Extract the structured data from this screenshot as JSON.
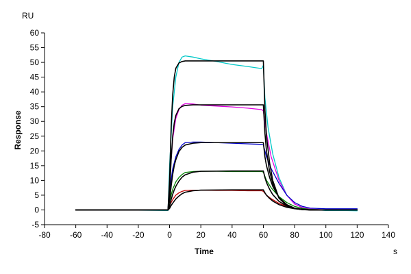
{
  "chart_data": {
    "type": "line",
    "title": "",
    "xlabel": "Time",
    "ylabel": "Response",
    "x_unit": "s",
    "y_unit": "RU",
    "xlim": [
      -80,
      140
    ],
    "ylim": [
      -5,
      60
    ],
    "xticks": [
      -80,
      -60,
      -40,
      -20,
      0,
      20,
      40,
      60,
      80,
      100,
      120,
      140
    ],
    "yticks": [
      -5,
      0,
      5,
      10,
      15,
      20,
      25,
      30,
      35,
      40,
      45,
      50,
      55,
      60
    ],
    "grid": false,
    "legend": "none",
    "series": [
      {
        "color": "#00c8c8",
        "kind": "measured",
        "points": [
          [
            -60,
            0
          ],
          [
            -20,
            -0.1
          ],
          [
            -1,
            -0.2
          ],
          [
            0,
            15
          ],
          [
            2,
            35
          ],
          [
            4,
            45
          ],
          [
            6,
            50
          ],
          [
            8,
            51.8
          ],
          [
            10,
            52.2
          ],
          [
            15,
            51.8
          ],
          [
            20,
            51.2
          ],
          [
            30,
            50.3
          ],
          [
            40,
            49.3
          ],
          [
            50,
            48.6
          ],
          [
            59,
            47.9
          ],
          [
            60,
            49
          ],
          [
            61,
            38
          ],
          [
            63,
            28
          ],
          [
            66,
            19
          ],
          [
            70,
            11
          ],
          [
            75,
            5
          ],
          [
            80,
            2
          ],
          [
            85,
            0.8
          ],
          [
            90,
            0.2
          ],
          [
            100,
            -0.2
          ],
          [
            110,
            -0.2
          ],
          [
            120,
            -0.3
          ]
        ]
      },
      {
        "color": "#e000e0",
        "kind": "measured",
        "points": [
          [
            -60,
            0
          ],
          [
            -1,
            -0.1
          ],
          [
            0,
            10
          ],
          [
            2,
            24
          ],
          [
            4,
            31
          ],
          [
            6,
            34
          ],
          [
            8,
            35.5
          ],
          [
            10,
            36
          ],
          [
            15,
            35.9
          ],
          [
            20,
            35.5
          ],
          [
            30,
            35.2
          ],
          [
            40,
            34.9
          ],
          [
            50,
            34.5
          ],
          [
            59,
            34
          ],
          [
            60,
            33.5
          ],
          [
            62,
            26
          ],
          [
            65,
            18
          ],
          [
            70,
            10
          ],
          [
            75,
            5
          ],
          [
            80,
            2
          ],
          [
            85,
            0.8
          ],
          [
            90,
            0.3
          ],
          [
            100,
            0
          ],
          [
            110,
            0
          ],
          [
            120,
            0
          ]
        ]
      },
      {
        "color": "#0000c8",
        "kind": "measured",
        "points": [
          [
            -60,
            0
          ],
          [
            -1,
            0
          ],
          [
            0,
            6
          ],
          [
            2,
            14
          ],
          [
            4,
            18
          ],
          [
            6,
            20.5
          ],
          [
            8,
            22
          ],
          [
            10,
            22.8
          ],
          [
            15,
            23
          ],
          [
            20,
            23
          ],
          [
            30,
            22.8
          ],
          [
            40,
            22.6
          ],
          [
            50,
            22.4
          ],
          [
            59,
            22.2
          ],
          [
            60,
            22
          ],
          [
            62,
            18
          ],
          [
            65,
            14
          ],
          [
            70,
            9
          ],
          [
            75,
            5
          ],
          [
            80,
            2.5
          ],
          [
            85,
            1.2
          ],
          [
            90,
            0.6
          ],
          [
            100,
            0.4
          ],
          [
            110,
            0.4
          ],
          [
            120,
            0.4
          ]
        ]
      },
      {
        "color": "#008000",
        "kind": "measured",
        "points": [
          [
            -60,
            0
          ],
          [
            -1,
            0
          ],
          [
            0,
            3
          ],
          [
            2,
            7
          ],
          [
            4,
            9.5
          ],
          [
            6,
            11
          ],
          [
            8,
            12
          ],
          [
            10,
            12.7
          ],
          [
            15,
            13
          ],
          [
            20,
            13.1
          ],
          [
            30,
            13.1
          ],
          [
            40,
            13
          ],
          [
            50,
            13
          ],
          [
            59,
            13
          ],
          [
            60,
            12.8
          ],
          [
            62,
            10
          ],
          [
            65,
            7.5
          ],
          [
            70,
            4.5
          ],
          [
            75,
            2.5
          ],
          [
            80,
            1.2
          ],
          [
            85,
            0.5
          ],
          [
            90,
            0.2
          ],
          [
            100,
            0
          ],
          [
            110,
            0
          ],
          [
            120,
            0
          ]
        ]
      },
      {
        "color": "#c00000",
        "kind": "measured",
        "points": [
          [
            -60,
            0
          ],
          [
            -1,
            0
          ],
          [
            0,
            1.5
          ],
          [
            2,
            3.5
          ],
          [
            4,
            5
          ],
          [
            6,
            5.8
          ],
          [
            8,
            6.3
          ],
          [
            10,
            6.6
          ],
          [
            15,
            6.7
          ],
          [
            20,
            6.7
          ],
          [
            30,
            6.6
          ],
          [
            40,
            6.6
          ],
          [
            50,
            6.5
          ],
          [
            59,
            6.5
          ],
          [
            60,
            6.3
          ],
          [
            62,
            5
          ],
          [
            65,
            3.8
          ],
          [
            70,
            2.2
          ],
          [
            75,
            1.2
          ],
          [
            80,
            0.5
          ],
          [
            85,
            0.2
          ],
          [
            90,
            0
          ],
          [
            100,
            0
          ],
          [
            110,
            0
          ],
          [
            120,
            0
          ]
        ]
      },
      {
        "color": "#000000",
        "kind": "fit",
        "points": [
          [
            -60,
            0
          ],
          [
            -1,
            0
          ],
          [
            0,
            10
          ],
          [
            1,
            28
          ],
          [
            2,
            39
          ],
          [
            3,
            45
          ],
          [
            4,
            48
          ],
          [
            6,
            49.8
          ],
          [
            8,
            50.3
          ],
          [
            10,
            50.5
          ],
          [
            20,
            50.5
          ],
          [
            40,
            50.5
          ],
          [
            59.5,
            50.5
          ],
          [
            60,
            50.5
          ],
          [
            61,
            34
          ],
          [
            62,
            25
          ],
          [
            64,
            16
          ],
          [
            66,
            10
          ],
          [
            70,
            4
          ],
          [
            75,
            1.4
          ],
          [
            80,
            0.5
          ],
          [
            85,
            0.1
          ],
          [
            90,
            0
          ],
          [
            120,
            0
          ]
        ]
      },
      {
        "color": "#000000",
        "kind": "fit",
        "points": [
          [
            -60,
            0
          ],
          [
            -1,
            0
          ],
          [
            0,
            6
          ],
          [
            1,
            17
          ],
          [
            2,
            25
          ],
          [
            3,
            29.5
          ],
          [
            4,
            32
          ],
          [
            6,
            34.3
          ],
          [
            8,
            35.1
          ],
          [
            10,
            35.4
          ],
          [
            15,
            35.6
          ],
          [
            20,
            35.6
          ],
          [
            40,
            35.6
          ],
          [
            59.5,
            35.6
          ],
          [
            60,
            35.6
          ],
          [
            61,
            26
          ],
          [
            62,
            20
          ],
          [
            64,
            13
          ],
          [
            66,
            9
          ],
          [
            70,
            4
          ],
          [
            75,
            1.5
          ],
          [
            80,
            0.5
          ],
          [
            85,
            0.1
          ],
          [
            90,
            0
          ],
          [
            120,
            0
          ]
        ]
      },
      {
        "color": "#000000",
        "kind": "fit",
        "points": [
          [
            -60,
            0
          ],
          [
            -1,
            0
          ],
          [
            0,
            3
          ],
          [
            1,
            8
          ],
          [
            2,
            12
          ],
          [
            3,
            15
          ],
          [
            4,
            17
          ],
          [
            6,
            19.8
          ],
          [
            8,
            21.2
          ],
          [
            10,
            22
          ],
          [
            15,
            22.6
          ],
          [
            20,
            22.8
          ],
          [
            40,
            22.8
          ],
          [
            59.5,
            22.8
          ],
          [
            60,
            22.8
          ],
          [
            61,
            18
          ],
          [
            62,
            15
          ],
          [
            64,
            11
          ],
          [
            66,
            8
          ],
          [
            70,
            4.2
          ],
          [
            75,
            1.8
          ],
          [
            80,
            0.6
          ],
          [
            85,
            0.2
          ],
          [
            90,
            0
          ],
          [
            120,
            0
          ]
        ]
      },
      {
        "color": "#000000",
        "kind": "fit",
        "points": [
          [
            -60,
            0
          ],
          [
            -1,
            0
          ],
          [
            0,
            1.2
          ],
          [
            1,
            3.5
          ],
          [
            2,
            5.3
          ],
          [
            3,
            6.8
          ],
          [
            4,
            8
          ],
          [
            6,
            9.8
          ],
          [
            8,
            11.1
          ],
          [
            10,
            11.9
          ],
          [
            15,
            12.8
          ],
          [
            20,
            13.1
          ],
          [
            40,
            13.2
          ],
          [
            59.5,
            13.2
          ],
          [
            60,
            13.2
          ],
          [
            61,
            11
          ],
          [
            62,
            9.3
          ],
          [
            64,
            7
          ],
          [
            66,
            5.2
          ],
          [
            70,
            2.9
          ],
          [
            75,
            1.3
          ],
          [
            80,
            0.5
          ],
          [
            85,
            0.2
          ],
          [
            90,
            0
          ],
          [
            120,
            0
          ]
        ]
      },
      {
        "color": "#000000",
        "kind": "fit",
        "points": [
          [
            -60,
            0
          ],
          [
            -1,
            0
          ],
          [
            0,
            0.5
          ],
          [
            1,
            1.5
          ],
          [
            2,
            2.3
          ],
          [
            3,
            3
          ],
          [
            4,
            3.7
          ],
          [
            6,
            4.7
          ],
          [
            8,
            5.5
          ],
          [
            10,
            6
          ],
          [
            15,
            6.5
          ],
          [
            20,
            6.7
          ],
          [
            40,
            6.8
          ],
          [
            59.5,
            6.8
          ],
          [
            60,
            6.8
          ],
          [
            61,
            5.8
          ],
          [
            62,
            5
          ],
          [
            64,
            3.9
          ],
          [
            66,
            3
          ],
          [
            70,
            1.8
          ],
          [
            75,
            0.9
          ],
          [
            80,
            0.4
          ],
          [
            85,
            0.15
          ],
          [
            90,
            0
          ],
          [
            120,
            0
          ]
        ]
      }
    ]
  }
}
